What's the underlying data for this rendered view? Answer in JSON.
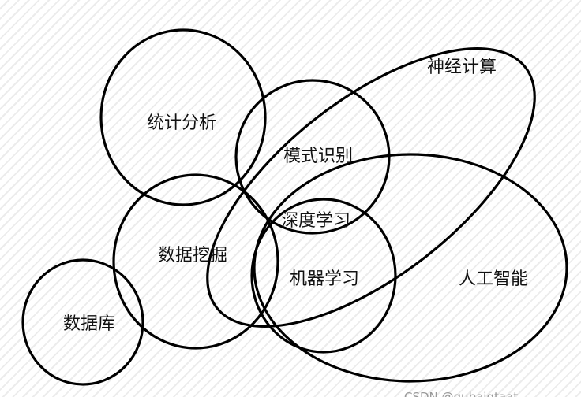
{
  "diagram": {
    "labels": {
      "neural_computing": "神经计算",
      "statistical_analysis": "统计分析",
      "pattern_recognition": "模式识别",
      "deep_learning": "深度学习",
      "data_mining": "数据挖掘",
      "machine_learning": "机器学习",
      "artificial_intelligence": "人工智能",
      "database": "数据库"
    },
    "watermark": "CSDN @qubaigtaat"
  }
}
